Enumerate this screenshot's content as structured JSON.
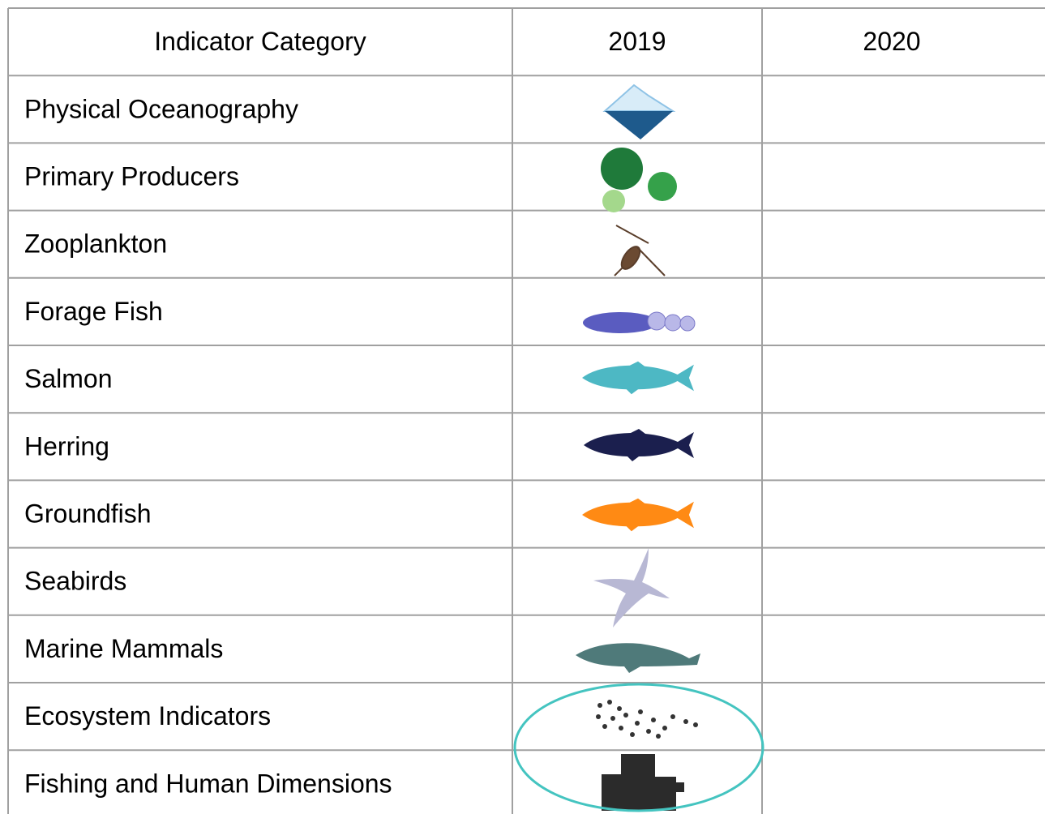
{
  "table": {
    "header": [
      "Indicator Category",
      "2019",
      "2020"
    ],
    "rows": [
      [
        "Physical Oceanography"
      ],
      [
        "Primary Producers"
      ],
      [
        "Zooplankton"
      ],
      [
        "Forage Fish"
      ],
      [
        "Salmon"
      ],
      [
        "Herring"
      ],
      [
        "Groundfish"
      ],
      [
        "Seabirds"
      ],
      [
        "Marine Mammals"
      ],
      [
        "Ecosystem Indicators"
      ],
      [
        "Fishing and Human Dimensions"
      ]
    ]
  }
}
